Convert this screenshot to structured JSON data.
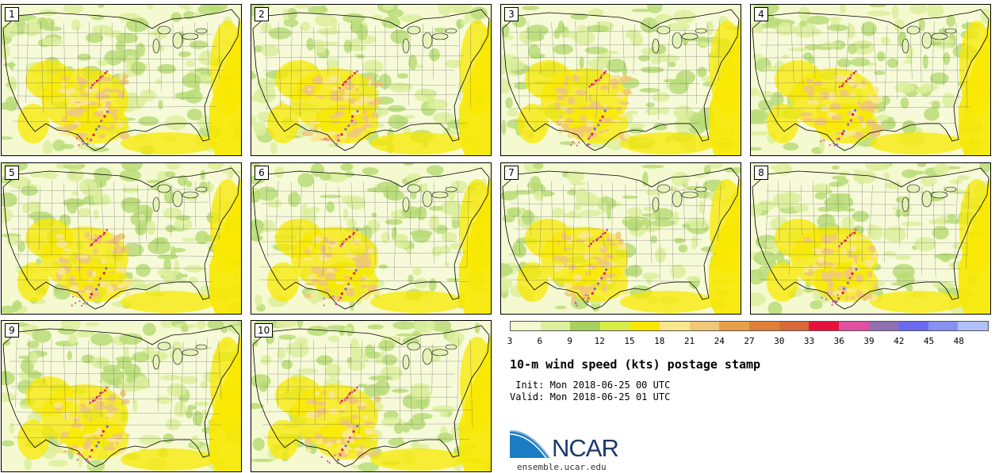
{
  "panels": [
    {
      "label": "1"
    },
    {
      "label": "2"
    },
    {
      "label": "3"
    },
    {
      "label": "4"
    },
    {
      "label": "5"
    },
    {
      "label": "6"
    },
    {
      "label": "7"
    },
    {
      "label": "8"
    },
    {
      "label": "9"
    },
    {
      "label": "10"
    }
  ],
  "colorbar": {
    "colors": [
      "#f4f9cf",
      "#dcef9c",
      "#a8d05c",
      "#d6ec48",
      "#f8e800",
      "#f8e88c",
      "#f0c878",
      "#e8a048",
      "#e08038",
      "#d86838",
      "#e8103c",
      "#e050a0",
      "#9070b0",
      "#6a6af0",
      "#8890f0",
      "#b0c0f8"
    ],
    "ticks": [
      "3",
      "6",
      "9",
      "12",
      "15",
      "18",
      "21",
      "24",
      "27",
      "30",
      "33",
      "36",
      "39",
      "42",
      "45",
      "48"
    ]
  },
  "title": "10-m wind speed (kts) postage stamp",
  "init": " Init: Mon 2018-06-25 00 UTC",
  "valid": "Valid: Mon 2018-06-25 01 UTC",
  "logo_text": "NCAR",
  "url": "ensemble.ucar.edu",
  "icons": {
    "logo": "ncar-logo-icon"
  }
}
